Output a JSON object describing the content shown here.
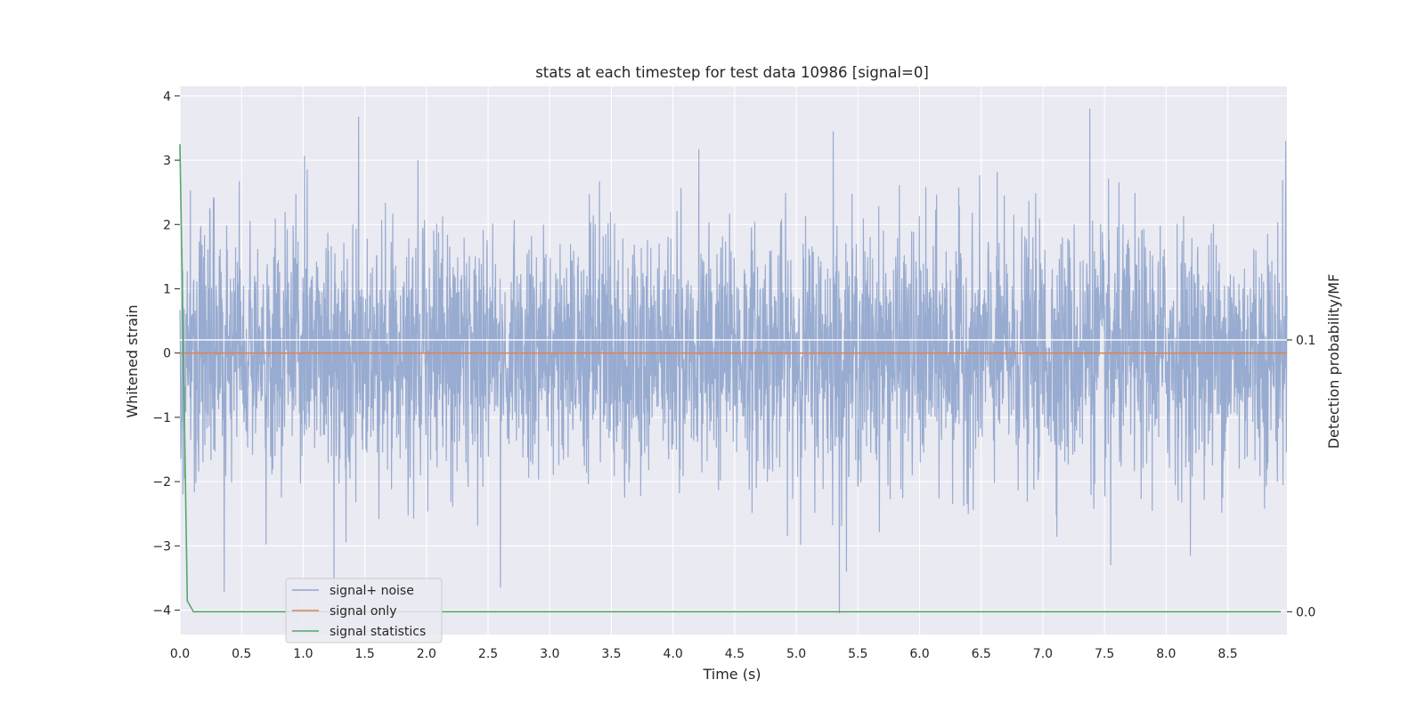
{
  "chart_data": {
    "type": "line",
    "title": "stats at each timestep for test data 10986 [signal=0]",
    "xlabel": "Time (s)",
    "ylabel": "Whitened strain",
    "y2label": "Detection probability/MF",
    "xlim": [
      0,
      8.98
    ],
    "ylim": [
      -4.38,
      4.15
    ],
    "y2lim": [
      -0.0084,
      0.1933
    ],
    "xticks": [
      "0.0",
      "0.5",
      "1.0",
      "1.5",
      "2.0",
      "2.5",
      "3.0",
      "3.5",
      "4.0",
      "4.5",
      "5.0",
      "5.5",
      "6.0",
      "6.5",
      "7.0",
      "7.5",
      "8.0",
      "8.5"
    ],
    "yticks": [
      "4",
      "3",
      "2",
      "1",
      "0",
      "−1",
      "−2",
      "−3",
      "−4"
    ],
    "y2ticks": [
      "0.1",
      "0.0"
    ],
    "grid": true,
    "legend_position": "lower-left",
    "series": [
      {
        "name": "signal+ noise",
        "axis": "left",
        "color": "#8fa4cc",
        "description_points": {
          "x_range": [
            0,
            8.98
          ],
          "typical_envelope": [
            -1.5,
            1.5
          ],
          "notable_peaks": [
            [
              0.36,
              -3.72
            ],
            [
              1.01,
              3.07
            ],
            [
              1.45,
              3.68
            ],
            [
              1.25,
              -3.6
            ],
            [
              1.93,
              3.0
            ],
            [
              2.6,
              -3.65
            ],
            [
              4.21,
              3.17
            ],
            [
              5.3,
              3.45
            ],
            [
              5.35,
              -4.05
            ],
            [
              7.38,
              3.8
            ],
            [
              7.55,
              -3.3
            ],
            [
              8.97,
              3.3
            ]
          ]
        }
      },
      {
        "name": "signal only",
        "axis": "left",
        "color": "#dd8452",
        "x": [
          0,
          8.98
        ],
        "y": [
          0,
          0
        ]
      },
      {
        "name": "signal statistics",
        "axis": "right",
        "color": "#55a868",
        "x": [
          0,
          0.03,
          0.06,
          0.11,
          0.5,
          1.0,
          2.0,
          3.0,
          4.0,
          5.0,
          6.0,
          7.0,
          8.0,
          8.93
        ],
        "y": [
          0.172,
          0.09,
          0.004,
          0.0,
          0.0,
          0.0,
          0.0,
          0.0,
          0.0,
          0.0,
          0.0,
          0.0,
          0.0,
          0.0
        ]
      }
    ],
    "reference_line": {
      "axis": "right",
      "y": 0.1,
      "color": "#ffffff"
    }
  },
  "legend": {
    "items": [
      {
        "label": "signal+ noise",
        "color": "#8fa4cc"
      },
      {
        "label": "signal only",
        "color": "#dd8452"
      },
      {
        "label": "signal statistics",
        "color": "#55a868"
      }
    ]
  },
  "colors": {
    "plot_background": "#eaeaf2",
    "grid": "#ffffff",
    "text": "#262626"
  }
}
